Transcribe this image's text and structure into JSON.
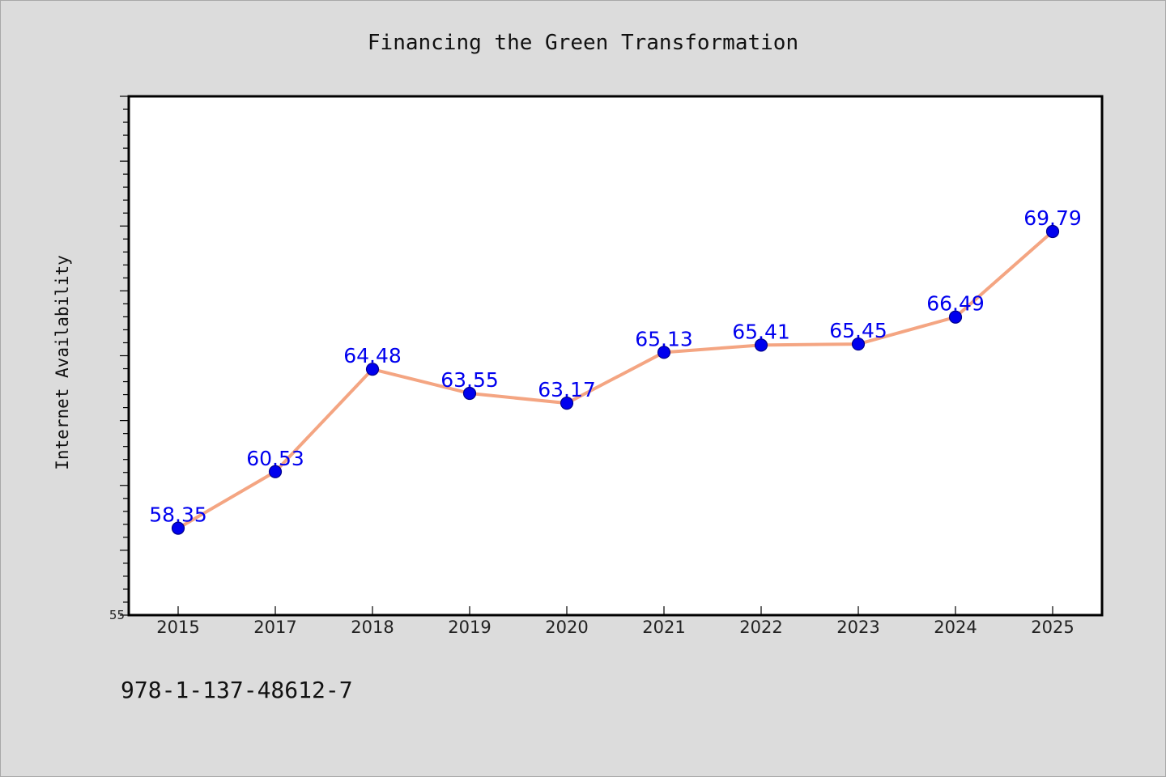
{
  "chart_data": {
    "type": "line",
    "title": "Financing the Green Transformation",
    "xlabel": "",
    "ylabel": "Internet Availability",
    "categories": [
      "2015",
      "2017",
      "2018",
      "2019",
      "2020",
      "2021",
      "2022",
      "2023",
      "2024",
      "2025"
    ],
    "series": [
      {
        "values": [
          58.35,
          60.53,
          64.48,
          63.55,
          63.17,
          65.13,
          65.41,
          65.45,
          66.49,
          69.79
        ],
        "labels": [
          "58.35",
          "60.53",
          "64.48",
          "63.55",
          "63.17",
          "65.13",
          "65.41",
          "65.45",
          "66.49",
          "69.79"
        ]
      }
    ],
    "ylim": [
      55,
      75
    ],
    "yticks": [
      "55"
    ],
    "grid": false,
    "legend": "none",
    "colors": {
      "line": "#f4a582",
      "marker": "#0000ee",
      "label": "#0000ee",
      "background": "#dcdcdc",
      "plot_background": "#ffffff"
    }
  },
  "footer": {
    "isbn": "978-1-137-48612-7"
  }
}
